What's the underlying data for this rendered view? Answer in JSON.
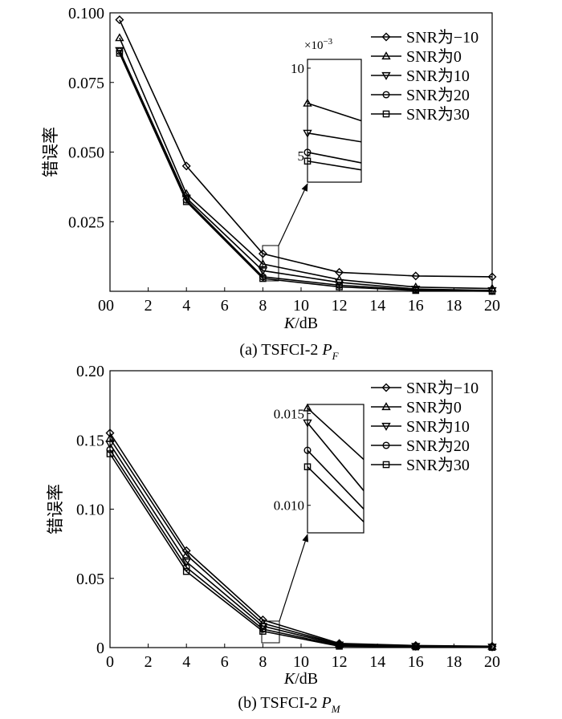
{
  "chart_data": [
    {
      "type": "line",
      "caption_prefix": "(a) TSFCI-2 ",
      "caption_symbol": "P",
      "caption_sub": "F",
      "xlabel_italic": "K",
      "xlabel_rest": "/dB",
      "ylabel": "错误率",
      "xlim": [
        0,
        20
      ],
      "ylim": [
        0,
        0.1
      ],
      "xticks": [
        0,
        2,
        4,
        6,
        8,
        10,
        12,
        14,
        16,
        18,
        20
      ],
      "yticks": [
        0.025,
        0.05,
        0.075,
        0.1
      ],
      "ytick_labels": [
        "0.025",
        "0.050",
        "0.075",
        "0.100"
      ],
      "series": [
        {
          "name": "SNR为−10",
          "marker": "diamond",
          "x": [
            0.5,
            4,
            8,
            12,
            16,
            20
          ],
          "y": [
            0.0975,
            0.045,
            0.0135,
            0.0068,
            0.0055,
            0.0052
          ]
        },
        {
          "name": "SNR为0",
          "marker": "triangle-up",
          "x": [
            0.5,
            4,
            8,
            12,
            16,
            20
          ],
          "y": [
            0.091,
            0.035,
            0.0098,
            0.0042,
            0.0015,
            0.001
          ]
        },
        {
          "name": "SNR为10",
          "marker": "triangle-down",
          "x": [
            0.5,
            4,
            8,
            12,
            16,
            20
          ],
          "y": [
            0.0865,
            0.0335,
            0.0074,
            0.0032,
            0.0008,
            0.0003
          ]
        },
        {
          "name": "SNR为20",
          "marker": "circle",
          "x": [
            0.5,
            4,
            8,
            12,
            16,
            20
          ],
          "y": [
            0.0862,
            0.0328,
            0.0052,
            0.0022,
            0.0005,
            0.0001
          ]
        },
        {
          "name": "SNR为30",
          "marker": "square",
          "x": [
            0.5,
            4,
            8,
            12,
            16,
            20
          ],
          "y": [
            0.0855,
            0.0322,
            0.0046,
            0.0016,
            0.0003,
            0.0
          ]
        }
      ],
      "inset": {
        "scale_label": "×10",
        "scale_exp": "−3",
        "ylim": [
          3.5,
          10.5
        ],
        "yticks": [
          10,
          5
        ],
        "ytick_labels": [
          "10",
          "5"
        ],
        "values_start": [
          8.0,
          6.3,
          5.2,
          4.7
        ],
        "values_end": [
          7.0,
          5.8,
          4.6,
          4.2
        ]
      }
    },
    {
      "type": "line",
      "caption_prefix": "(b) TSFCI-2 ",
      "caption_symbol": "P",
      "caption_sub": "M",
      "xlabel_italic": "K",
      "xlabel_rest": "/dB",
      "ylabel": "错误率",
      "xlim": [
        0,
        20
      ],
      "ylim": [
        0,
        0.2
      ],
      "xticks": [
        0,
        2,
        4,
        6,
        8,
        10,
        12,
        14,
        16,
        18,
        20
      ],
      "yticks": [
        0,
        0.05,
        0.1,
        0.15,
        0.2
      ],
      "ytick_labels": [
        "0",
        "0.05",
        "0.10",
        "0.15",
        "0.20"
      ],
      "series": [
        {
          "name": "SNR为−10",
          "marker": "diamond",
          "x": [
            0,
            4,
            8,
            12,
            16,
            20
          ],
          "y": [
            0.155,
            0.07,
            0.02,
            0.003,
            0.0015,
            0.001
          ]
        },
        {
          "name": "SNR为0",
          "marker": "triangle-up",
          "x": [
            0,
            4,
            8,
            12,
            16,
            20
          ],
          "y": [
            0.151,
            0.067,
            0.0175,
            0.0025,
            0.0012,
            0.0008
          ]
        },
        {
          "name": "SNR为10",
          "marker": "triangle-down",
          "x": [
            0,
            4,
            8,
            12,
            16,
            20
          ],
          "y": [
            0.147,
            0.062,
            0.0155,
            0.002,
            0.001,
            0.0005
          ]
        },
        {
          "name": "SNR为20",
          "marker": "circle",
          "x": [
            0,
            4,
            8,
            12,
            16,
            20
          ],
          "y": [
            0.143,
            0.058,
            0.0133,
            0.0015,
            0.0008,
            0.0003
          ]
        },
        {
          "name": "SNR为30",
          "marker": "square",
          "x": [
            0,
            4,
            8,
            12,
            16,
            20
          ],
          "y": [
            0.14,
            0.055,
            0.0118,
            0.001,
            0.0005,
            0.0002
          ]
        }
      ],
      "inset": {
        "scale_label": "",
        "scale_exp": "",
        "ylim": [
          0.0085,
          0.0155
        ],
        "yticks": [
          0.015,
          0.01
        ],
        "ytick_labels": [
          "0.015",
          "0.010"
        ],
        "values_start": [
          0.0153,
          0.0145,
          0.013,
          0.0121
        ],
        "values_end": [
          0.0125,
          0.0108,
          0.0098,
          0.0091
        ]
      }
    }
  ]
}
